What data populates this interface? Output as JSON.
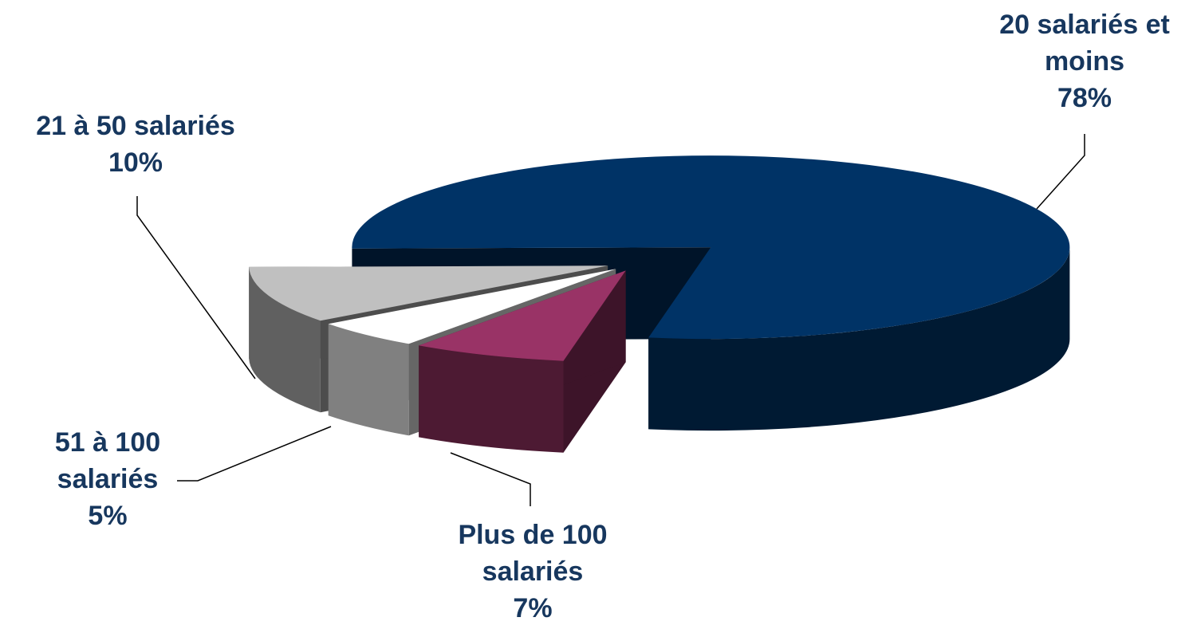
{
  "chart_data": {
    "type": "pie3d",
    "categories": [
      "20 salariés et moins",
      "21 à 50 salariés",
      "51 à 100 salariés",
      "Plus de 100 salariés"
    ],
    "values": [
      78,
      10,
      5,
      7
    ],
    "value_labels": [
      "78%",
      "10%",
      "5%",
      "7%"
    ],
    "colors": [
      "#003366",
      "#c0c0c0",
      "#ffffff",
      "#993366"
    ]
  }
}
